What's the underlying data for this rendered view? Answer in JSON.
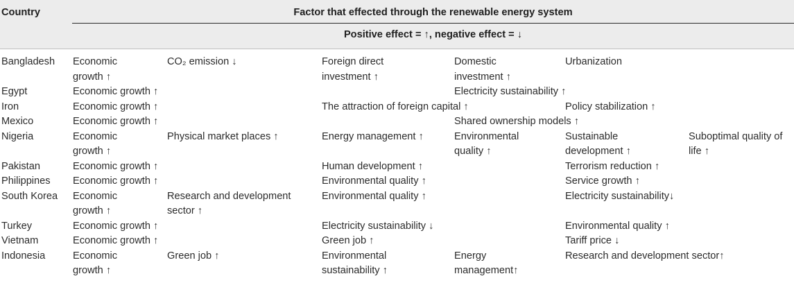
{
  "header": {
    "country": "Country",
    "factor": "Factor that effected through the renewable energy system",
    "legend": "Positive effect = ↑, negative effect = ↓"
  },
  "rows": [
    {
      "country": "Bangladesh",
      "cells": [
        {
          "col": 1,
          "lines": [
            "Economic",
            "growth ↑"
          ]
        },
        {
          "col": 2,
          "lines": [
            "CO₂ emission ↓"
          ]
        },
        {
          "col": 3,
          "lines": [
            "Foreign direct",
            "investment ↑"
          ]
        },
        {
          "col": 4,
          "lines": [
            "Domestic",
            "investment ↑"
          ]
        },
        {
          "col": 5,
          "lines": [
            "Urbanization"
          ]
        }
      ]
    },
    {
      "country": "Egypt",
      "cells": [
        {
          "col": 1,
          "lines": [
            "Economic growth ↑"
          ]
        },
        {
          "col": 4,
          "lines": [
            "Electricity sustainability ↑"
          ]
        }
      ]
    },
    {
      "country": "Iron",
      "cells": [
        {
          "col": 1,
          "lines": [
            "Economic growth ↑"
          ]
        },
        {
          "col": 3,
          "lines": [
            "The attraction of foreign capital ↑"
          ]
        },
        {
          "col": 5,
          "lines": [
            "Policy stabilization ↑"
          ]
        }
      ]
    },
    {
      "country": "Mexico",
      "cells": [
        {
          "col": 1,
          "lines": [
            "Economic growth ↑"
          ]
        },
        {
          "col": 4,
          "lines": [
            "Shared ownership models ↑"
          ]
        }
      ]
    },
    {
      "country": "Nigeria",
      "cells": [
        {
          "col": 1,
          "lines": [
            "Economic",
            "growth ↑"
          ]
        },
        {
          "col": 2,
          "lines": [
            "Physical market places ↑"
          ]
        },
        {
          "col": 3,
          "lines": [
            "Energy management ↑"
          ]
        },
        {
          "col": 4,
          "lines": [
            "Environmental",
            "quality ↑"
          ]
        },
        {
          "col": 5,
          "lines": [
            "Sustainable",
            "development ↑"
          ]
        },
        {
          "col": 6,
          "lines": [
            "Suboptimal quality of",
            "life ↑"
          ]
        }
      ]
    },
    {
      "country": "Pakistan",
      "cells": [
        {
          "col": 1,
          "lines": [
            "Economic growth ↑"
          ]
        },
        {
          "col": 3,
          "lines": [
            "Human development ↑"
          ]
        },
        {
          "col": 5,
          "lines": [
            "Terrorism reduction ↑"
          ]
        }
      ]
    },
    {
      "country": "Philippines",
      "cells": [
        {
          "col": 1,
          "lines": [
            "Economic growth ↑"
          ]
        },
        {
          "col": 3,
          "lines": [
            "Environmental quality ↑"
          ]
        },
        {
          "col": 5,
          "lines": [
            "Service growth ↑"
          ]
        }
      ]
    },
    {
      "country": "South Korea",
      "cells": [
        {
          "col": 1,
          "lines": [
            "Economic",
            "growth ↑"
          ]
        },
        {
          "col": 2,
          "lines": [
            "Research and development",
            "sector ↑"
          ]
        },
        {
          "col": 3,
          "lines": [
            "Environmental quality ↑"
          ]
        },
        {
          "col": 5,
          "lines": [
            "Electricity sustainability↓"
          ]
        }
      ]
    },
    {
      "country": "Turkey",
      "cells": [
        {
          "col": 1,
          "lines": [
            "Economic growth ↑"
          ]
        },
        {
          "col": 3,
          "lines": [
            "Electricity sustainability ↓"
          ]
        },
        {
          "col": 5,
          "lines": [
            "Environmental quality ↑"
          ]
        }
      ]
    },
    {
      "country": "Vietnam",
      "cells": [
        {
          "col": 1,
          "lines": [
            "Economic growth ↑"
          ]
        },
        {
          "col": 3,
          "lines": [
            "Green job ↑"
          ]
        },
        {
          "col": 5,
          "lines": [
            "Tariff price ↓"
          ]
        }
      ]
    },
    {
      "country": "Indonesia",
      "cells": [
        {
          "col": 1,
          "lines": [
            "Economic",
            "growth ↑"
          ]
        },
        {
          "col": 2,
          "lines": [
            "Green job ↑"
          ]
        },
        {
          "col": 3,
          "lines": [
            "Environmental",
            "sustainability ↑"
          ]
        },
        {
          "col": 4,
          "lines": [
            "Energy",
            "management↑"
          ]
        },
        {
          "col": 5,
          "lines": [
            "Research and development sector↑"
          ]
        }
      ]
    }
  ]
}
